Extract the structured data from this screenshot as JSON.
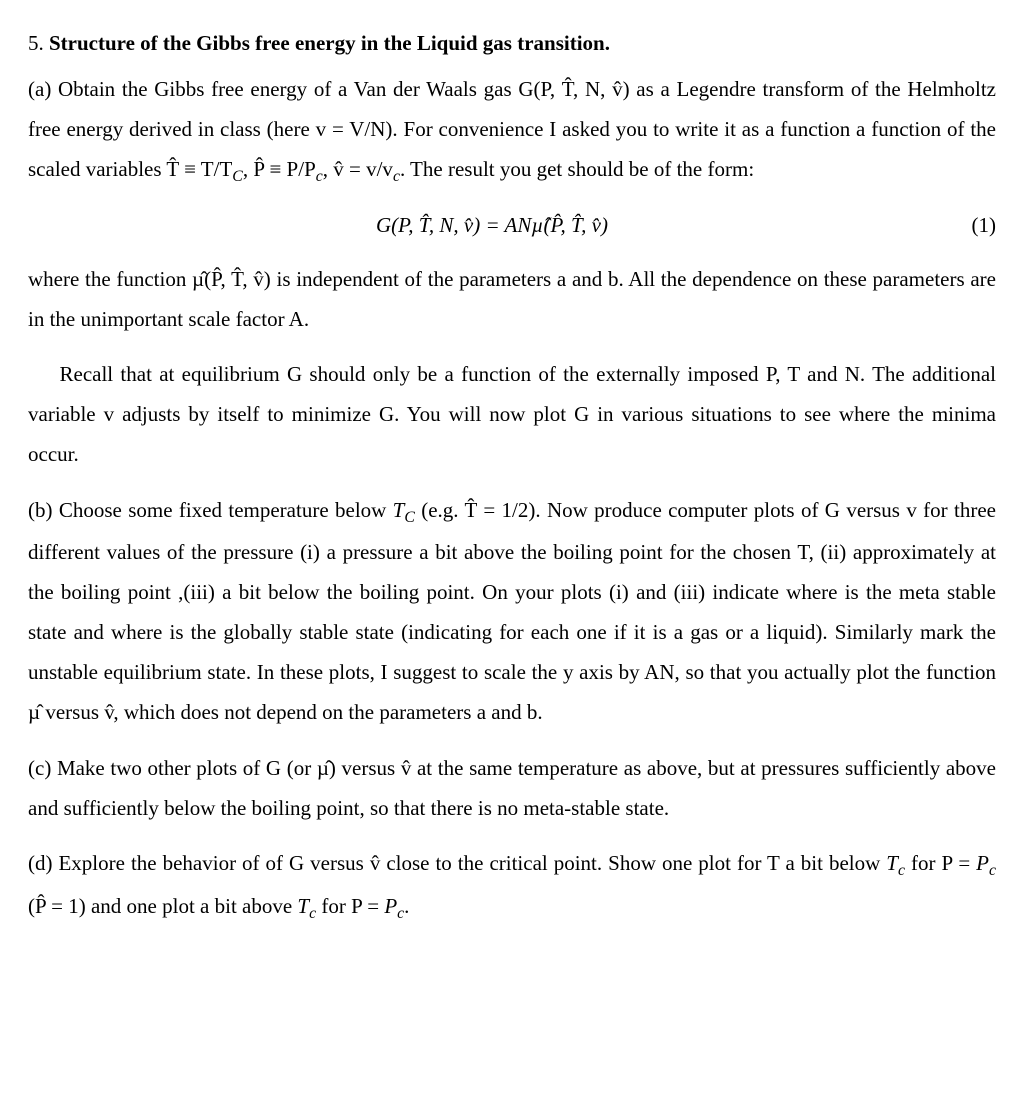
{
  "p5_title_prefix": "5.",
  "p5_title_text": "Structure of the Gibbs free energy in the Liquid gas transition.",
  "part_a": {
    "text_before_eq": "(a) Obtain the Gibbs free energy of a Van der Waals gas G(P, T̂, N, v̂) as a Legendre transform of the Helmholtz free energy derived in class (here v = V/N). For convenience I asked you to write it as a function a function of the scaled variables T̂ ≡ T/T",
    "tc_sub": "C",
    "comma1": ", ",
    "phat": "P̂ ≡ P/P",
    "pc_sub": "c",
    "comma2": ", ",
    "vhat": "v̂ = v/v",
    "vc_sub": "c",
    "after_defs": ". The result you get should be of the form:",
    "equation": "G(P, T̂, N, v̂) = ANµ̂(P̂, T̂, v̂)",
    "eq_num": "(1)",
    "text_after_eq": "where the function µ̂(P̂, T̂, v̂) is independent of the parameters a and b. All the dependence on these parameters are in the unimportant scale factor A."
  },
  "recall": "Recall that at equilibrium G should only be a function of the externally imposed P, T and N. The additional variable v adjusts by itself to minimize G. You will now plot G in various situations to see where the minima occur.",
  "part_b": "(b) Choose some fixed temperature below T_C (e.g. T̂ = 1/2). Now produce computer plots of G versus v for three different values of the pressure (i) a pressure a bit above the boiling point for the chosen T, (ii) approximately at the boiling point ,(iii) a bit below the boiling point. On your plots (i) and (iii) indicate where is the meta stable state and where is the globally stable state (indicating for each one if it is a gas or a liquid). Similarly mark the unstable equilibrium state. In these plots, I suggest to scale the y axis by AN, so that you actually plot the function µ̂ versus v̂, which does not depend on the parameters a and b.",
  "part_c": "(c) Make two other plots of G (or µ̂) versus v̂ at the same temperature as above, but at pressures sufficiently above and sufficiently below the boiling point, so that there is no meta-stable state.",
  "part_d": "(d) Explore the behavior of of G versus v̂ close to the critical point. Show one plot for T a bit below T_c for P = P_c (P̂ = 1) and one plot a bit above T_c for P = P_c."
}
